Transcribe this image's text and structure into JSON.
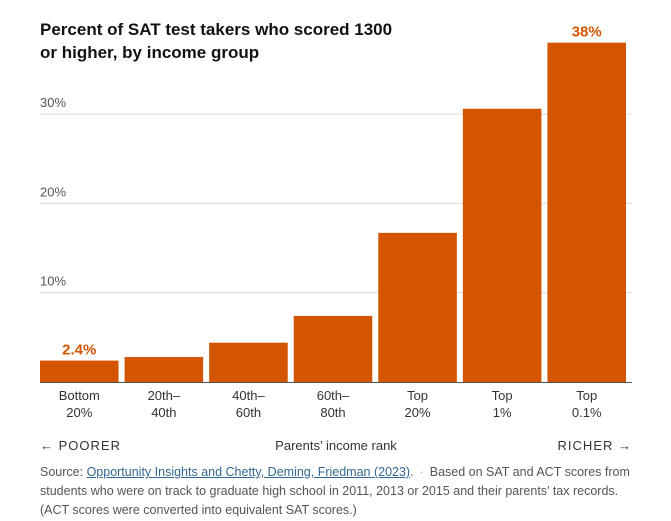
{
  "title": "Percent of SAT test takers who scored 1300 or higher, by income group",
  "axis": {
    "poorer": "← POORER",
    "center": "Parents’ income rank",
    "richer": "RICHER →"
  },
  "source": {
    "prefix": "Source: ",
    "link_text": "Opportunity Insights and Chetty, Deming, Friedman (2023)",
    "suffix": ".",
    "separator": "·",
    "note": "Based on SAT and ACT scores from students who were on track to graduate high school in 2011, 2013 or 2015 and their parents’ tax records. (ACT scores were converted into equivalent SAT scores.)"
  },
  "colors": {
    "bar": "#d45500",
    "label": "#d45500",
    "grid": "#d9d9d9",
    "baseline": "#555555"
  },
  "chart_data": {
    "type": "bar",
    "title": "Percent of SAT test takers who scored 1300 or higher, by income group",
    "xlabel": "Parents’ income rank",
    "ylabel": "",
    "ylim": [
      0,
      38
    ],
    "yticks": [
      10,
      20,
      30
    ],
    "ytick_labels": [
      "10%",
      "20%",
      "30%"
    ],
    "categories": [
      [
        "Bottom",
        "20%"
      ],
      [
        "20th–",
        "40th"
      ],
      [
        "40th–",
        "60th"
      ],
      [
        "60th–",
        "80th"
      ],
      [
        "Top",
        "20%"
      ],
      [
        "Top",
        "1%"
      ],
      [
        "Top",
        "0.1%"
      ]
    ],
    "values": [
      2.4,
      2.8,
      4.4,
      7.4,
      16.7,
      30.6,
      38
    ],
    "data_labels": [
      "2.4%",
      "",
      "",
      "",
      "",
      "",
      "38%"
    ]
  }
}
